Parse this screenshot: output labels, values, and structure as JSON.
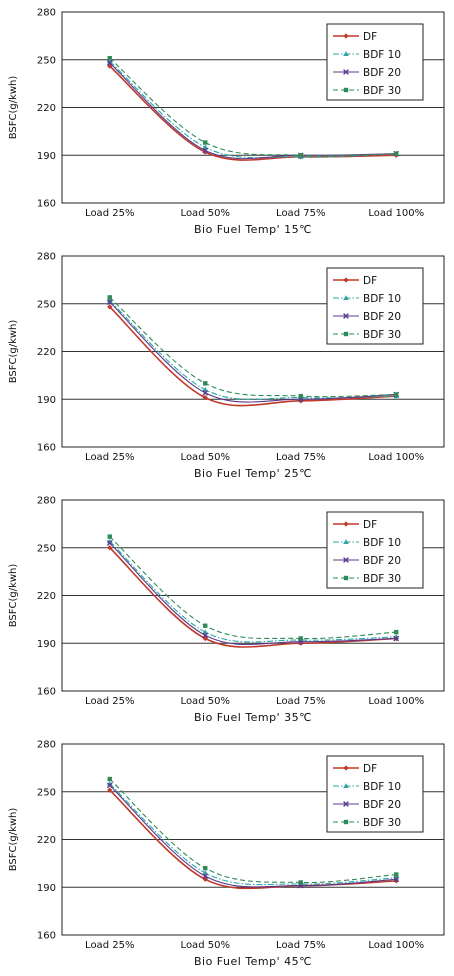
{
  "chart_data": [
    {
      "type": "line",
      "xlabel": "Bio Fuel Temp' 15℃",
      "ylabel": "BSFC(g/kwh)",
      "categories": [
        "Load 25%",
        "Load 50%",
        "Load 75%",
        "Load 100%"
      ],
      "ylim": [
        160,
        280
      ],
      "yticks": [
        160,
        190,
        220,
        250,
        280
      ],
      "grid": true,
      "legend_position": "top-right",
      "series": [
        {
          "name": "DF",
          "values": [
            246,
            192,
            189,
            190
          ],
          "color": "#c0392b",
          "dash": "solid",
          "marker": "diamond"
        },
        {
          "name": "BDF 10",
          "values": [
            249,
            195,
            189,
            191
          ],
          "color": "#2aa6a6",
          "dash": "dashdot",
          "marker": "triangle"
        },
        {
          "name": "BDF 20",
          "values": [
            248,
            193,
            190,
            191
          ],
          "color": "#5a3a8c",
          "dash": "solid",
          "marker": "x"
        },
        {
          "name": "BDF 30",
          "values": [
            251,
            198,
            190,
            191
          ],
          "color": "#2e8b57",
          "dash": "dash",
          "marker": "square"
        }
      ]
    },
    {
      "type": "line",
      "xlabel": "Bio Fuel Temp' 25℃",
      "ylabel": "BSFC(g/kwh)",
      "categories": [
        "Load 25%",
        "Load 50%",
        "Load 75%",
        "Load 100%"
      ],
      "ylim": [
        160,
        280
      ],
      "yticks": [
        160,
        190,
        220,
        250,
        280
      ],
      "grid": true,
      "legend_position": "top-right",
      "series": [
        {
          "name": "DF",
          "values": [
            248,
            191,
            189,
            192
          ],
          "color": "#c0392b",
          "dash": "solid",
          "marker": "diamond"
        },
        {
          "name": "BDF 10",
          "values": [
            252,
            196,
            191,
            192
          ],
          "color": "#2aa6a6",
          "dash": "dashdot",
          "marker": "triangle"
        },
        {
          "name": "BDF 20",
          "values": [
            251,
            194,
            190,
            193
          ],
          "color": "#5a3a8c",
          "dash": "solid",
          "marker": "x"
        },
        {
          "name": "BDF 30",
          "values": [
            254,
            200,
            192,
            193
          ],
          "color": "#2e8b57",
          "dash": "dash",
          "marker": "square"
        }
      ]
    },
    {
      "type": "line",
      "xlabel": "Bio Fuel Temp' 35℃",
      "ylabel": "BSFC(g/kwh)",
      "categories": [
        "Load 25%",
        "Load 50%",
        "Load 75%",
        "Load 100%"
      ],
      "ylim": [
        160,
        280
      ],
      "yticks": [
        160,
        190,
        220,
        250,
        280
      ],
      "grid": true,
      "legend_position": "top-right",
      "series": [
        {
          "name": "DF",
          "values": [
            250,
            193,
            190,
            193
          ],
          "color": "#c0392b",
          "dash": "solid",
          "marker": "diamond"
        },
        {
          "name": "BDF 10",
          "values": [
            254,
            197,
            192,
            194
          ],
          "color": "#2aa6a6",
          "dash": "dashdot",
          "marker": "triangle"
        },
        {
          "name": "BDF 20",
          "values": [
            253,
            195,
            191,
            193
          ],
          "color": "#5a3a8c",
          "dash": "solid",
          "marker": "x"
        },
        {
          "name": "BDF 30",
          "values": [
            257,
            201,
            193,
            197
          ],
          "color": "#2e8b57",
          "dash": "dash",
          "marker": "square"
        }
      ]
    },
    {
      "type": "line",
      "xlabel": "Bio Fuel Temp' 45℃",
      "ylabel": "BSFC(g/kwh)",
      "categories": [
        "Load 25%",
        "Load 50%",
        "Load 75%",
        "Load 100%"
      ],
      "ylim": [
        160,
        280
      ],
      "yticks": [
        160,
        190,
        220,
        250,
        280
      ],
      "grid": true,
      "legend_position": "top-right",
      "series": [
        {
          "name": "DF",
          "values": [
            251,
            195,
            191,
            194
          ],
          "color": "#c0392b",
          "dash": "solid",
          "marker": "diamond"
        },
        {
          "name": "BDF 10",
          "values": [
            255,
            199,
            192,
            196
          ],
          "color": "#2aa6a6",
          "dash": "dashdot",
          "marker": "triangle"
        },
        {
          "name": "BDF 20",
          "values": [
            254,
            197,
            191,
            195
          ],
          "color": "#5a3a8c",
          "dash": "solid",
          "marker": "x"
        },
        {
          "name": "BDF 30",
          "values": [
            258,
            202,
            193,
            198
          ],
          "color": "#2e8b57",
          "dash": "dash",
          "marker": "square"
        }
      ]
    }
  ]
}
